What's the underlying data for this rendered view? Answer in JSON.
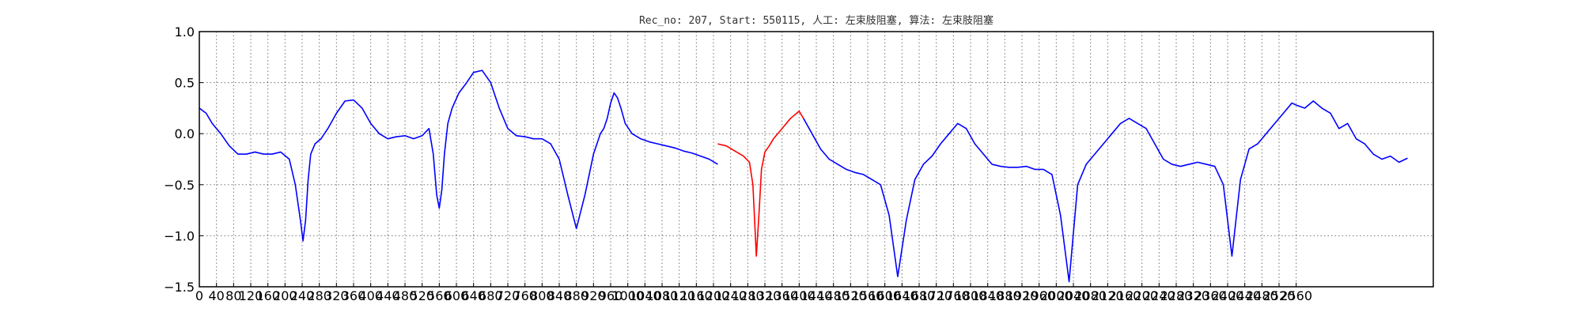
{
  "chart_data": {
    "type": "line",
    "title": "Rec_no: 207, Start: 550115, 人工: 左束肢阻塞, 算法: 左束肢阻塞",
    "xlabel": "",
    "ylabel": "",
    "xlim": [
      0,
      1440
    ],
    "ylim": [
      -1.5,
      1.0
    ],
    "grid": true,
    "yticks": [
      1.0,
      0.5,
      0.0,
      -0.5,
      -1.0,
      -1.5
    ],
    "ytick_labels": [
      "1.0",
      "0.5",
      "0.0",
      "−0.5",
      "−1.0",
      "−1.5"
    ],
    "xticks": [
      0,
      20,
      40,
      60,
      80,
      100,
      120,
      140,
      160,
      180,
      200,
      220,
      240,
      260,
      280,
      300,
      320,
      340,
      360,
      380,
      400,
      420,
      440,
      460,
      480,
      500,
      520,
      540,
      560,
      580,
      600,
      620,
      640,
      660,
      680,
      700,
      720,
      740,
      760,
      780,
      800,
      820,
      840,
      860,
      880,
      900,
      920,
      940,
      960,
      980,
      1000,
      1020,
      1040,
      1060,
      1080,
      1100,
      1120,
      1140,
      1160,
      1180,
      1200,
      1220,
      1240,
      1260,
      1280
    ],
    "xtick_labels": [
      "0",
      "40",
      "80",
      "120",
      "160",
      "200",
      "240",
      "280",
      "320",
      "360",
      "400",
      "440",
      "480",
      "520",
      "560",
      "600",
      "640",
      "680",
      "720",
      "760",
      "800",
      "840",
      "880",
      "920",
      "960",
      "1000",
      "1040",
      "1080",
      "1120",
      "1160",
      "1200",
      "1240",
      "1280",
      "1320",
      "1360",
      "1400",
      "1440",
      "1480",
      "1520",
      "1560",
      "1600",
      "1640",
      "1680",
      "1720",
      "1760",
      "1800",
      "1840",
      "1880",
      "1920",
      "1960",
      "2000",
      "2040",
      "2080",
      "2120",
      "2160",
      "2200",
      "2240",
      "2280",
      "2320",
      "2360",
      "2400",
      "2440",
      "2480",
      "2520",
      "2560"
    ],
    "series": [
      {
        "color": "#0000ff",
        "x": [
          0,
          8,
          15,
          25,
          35,
          45,
          55,
          65,
          75,
          85,
          95,
          105,
          112,
          118,
          121,
          124,
          127,
          130,
          135,
          142,
          150,
          160,
          170,
          180,
          190,
          200,
          210,
          220,
          230,
          240,
          250,
          260,
          268,
          273,
          277,
          280,
          283,
          286,
          290,
          295,
          303,
          312,
          320,
          330,
          340,
          350,
          360,
          370,
          380,
          390,
          400,
          410,
          420,
          430,
          440,
          450,
          460,
          468,
          472,
          476,
          480,
          484,
          488,
          492,
          497,
          505,
          515,
          525,
          535,
          545,
          555,
          565,
          575,
          585,
          595,
          605
        ],
        "y": [
          0.25,
          0.2,
          0.1,
          0.0,
          -0.12,
          -0.2,
          -0.2,
          -0.18,
          -0.2,
          -0.2,
          -0.18,
          -0.25,
          -0.5,
          -0.85,
          -1.05,
          -0.85,
          -0.45,
          -0.2,
          -0.1,
          -0.05,
          0.05,
          0.2,
          0.32,
          0.33,
          0.25,
          0.1,
          0.0,
          -0.05,
          -0.03,
          -0.02,
          -0.05,
          -0.02,
          0.05,
          -0.2,
          -0.6,
          -0.73,
          -0.55,
          -0.2,
          0.1,
          0.25,
          0.4,
          0.5,
          0.6,
          0.62,
          0.5,
          0.25,
          0.05,
          -0.02,
          -0.03,
          -0.05,
          -0.05,
          -0.1,
          -0.25,
          -0.6,
          -0.93,
          -0.6,
          -0.2,
          0.0,
          0.05,
          0.15,
          0.3,
          0.4,
          0.35,
          0.25,
          0.1,
          0.0,
          -0.05,
          -0.08,
          -0.1,
          -0.12,
          -0.14,
          -0.17,
          -0.19,
          -0.22,
          -0.25,
          -0.3
        ]
      },
      {
        "color": "#ff0000",
        "x": [
          605,
          615,
          625,
          635,
          642,
          646,
          650,
          653,
          656,
          660,
          665,
          670,
          680,
          690,
          700,
          705
        ],
        "y": [
          -0.1,
          -0.12,
          -0.17,
          -0.22,
          -0.28,
          -0.5,
          -1.2,
          -0.8,
          -0.35,
          -0.18,
          -0.12,
          -0.05,
          0.05,
          0.15,
          0.22,
          0.15
        ]
      },
      {
        "color": "#0000ff",
        "x": [
          705,
          715,
          725,
          735,
          745,
          755,
          765,
          775,
          785,
          795,
          805,
          815,
          825,
          835,
          845,
          855,
          865,
          875,
          885,
          895,
          905,
          915,
          925,
          935,
          945,
          955,
          965,
          975,
          985,
          995,
          1005,
          1015,
          1025,
          1035,
          1045,
          1055,
          1065,
          1075,
          1085,
          1095,
          1105,
          1115,
          1125,
          1135,
          1145,
          1155,
          1165,
          1175,
          1185,
          1195,
          1205,
          1215,
          1225,
          1235,
          1245,
          1255,
          1265,
          1275,
          1280
        ],
        "y": [
          0.15,
          0.0,
          -0.15,
          -0.25,
          -0.3,
          -0.35,
          -0.38,
          -0.4,
          -0.45,
          -0.5,
          -0.8,
          -1.4,
          -0.85,
          -0.45,
          -0.3,
          -0.22,
          -0.1,
          0.0,
          0.1,
          0.05,
          -0.1,
          -0.2,
          -0.3,
          -0.32,
          -0.33,
          -0.33,
          -0.32,
          -0.35,
          -0.35,
          -0.4,
          -0.8,
          -1.45,
          -0.5,
          -0.3,
          -0.2,
          -0.1,
          0.0,
          0.1,
          0.15,
          0.1,
          0.05,
          -0.1,
          -0.25,
          -0.3,
          -0.32,
          -0.3,
          -0.28,
          -0.3,
          -0.32,
          -0.5,
          -1.2,
          -0.45,
          -0.15,
          -0.1,
          0.0,
          0.1,
          0.2,
          0.3,
          0.28
        ]
      },
      {
        "color": "#0000ff",
        "x": [
          1280,
          1290,
          1300,
          1310,
          1320,
          1330,
          1340,
          1350,
          1360,
          1370,
          1380,
          1390,
          1400,
          1410
        ],
        "y": [
          0.28,
          0.25,
          0.32,
          0.25,
          0.2,
          0.05,
          0.1,
          -0.05,
          -0.1,
          -0.2,
          -0.25,
          -0.22,
          -0.28,
          -0.24
        ]
      }
    ]
  }
}
